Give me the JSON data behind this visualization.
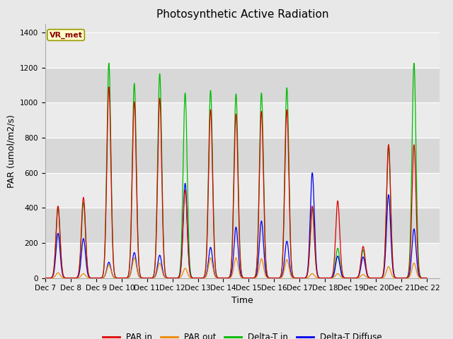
{
  "title": "Photosynthetic Active Radiation",
  "ylabel": "PAR (umol/m2/s)",
  "xlabel": "Time",
  "station_label": "VR_met",
  "ylim": [
    0,
    1450
  ],
  "yticks": [
    0,
    200,
    400,
    600,
    800,
    1000,
    1200,
    1400
  ],
  "xtick_labels": [
    "Dec 7",
    "Dec 8",
    "Dec 9",
    "Dec 10",
    "Dec 11",
    "Dec 12",
    "Dec 13",
    "Dec 14",
    "Dec 15",
    "Dec 16",
    "Dec 17",
    "Dec 18",
    "Dec 19",
    "Dec 20",
    "Dec 21",
    "Dec 22"
  ],
  "legend_entries": [
    "PAR in",
    "PAR out",
    "Delta-T in",
    "Delta-T Diffuse"
  ],
  "legend_colors": [
    "#dd0000",
    "#ee8800",
    "#00bb00",
    "#0000ee"
  ],
  "line_colors": {
    "PAR_in": "#dd0000",
    "PAR_out": "#ee8800",
    "Delta_T_in": "#00bb00",
    "Delta_T_Diffuse": "#0000ee"
  },
  "band_colors": [
    "#e8e8e8",
    "#d8d8d8"
  ],
  "plot_bg_color": "#e8e8e8",
  "grid_color": "#ffffff",
  "day_peaks": {
    "Dec7": {
      "PAR_in": 410,
      "PAR_out": 30,
      "Delta_T_in": 400,
      "Delta_T_Diffuse": 255
    },
    "Dec8": {
      "PAR_in": 460,
      "PAR_out": 25,
      "Delta_T_in": 430,
      "Delta_T_Diffuse": 225
    },
    "Dec9": {
      "PAR_in": 1090,
      "PAR_out": 75,
      "Delta_T_in": 1225,
      "Delta_T_Diffuse": 90
    },
    "Dec10": {
      "PAR_in": 1005,
      "PAR_out": 115,
      "Delta_T_in": 1110,
      "Delta_T_Diffuse": 145
    },
    "Dec11": {
      "PAR_in": 1025,
      "PAR_out": 85,
      "Delta_T_in": 1165,
      "Delta_T_Diffuse": 130
    },
    "Dec12": {
      "PAR_in": 500,
      "PAR_out": 55,
      "Delta_T_in": 1055,
      "Delta_T_Diffuse": 540
    },
    "Dec13": {
      "PAR_in": 960,
      "PAR_out": 115,
      "Delta_T_in": 1070,
      "Delta_T_Diffuse": 175
    },
    "Dec14": {
      "PAR_in": 935,
      "PAR_out": 115,
      "Delta_T_in": 1050,
      "Delta_T_Diffuse": 290
    },
    "Dec15": {
      "PAR_in": 950,
      "PAR_out": 110,
      "Delta_T_in": 1055,
      "Delta_T_Diffuse": 325
    },
    "Dec16": {
      "PAR_in": 960,
      "PAR_out": 105,
      "Delta_T_in": 1085,
      "Delta_T_Diffuse": 210
    },
    "Dec17": {
      "PAR_in": 410,
      "PAR_out": 25,
      "Delta_T_in": 395,
      "Delta_T_Diffuse": 600
    },
    "Dec18": {
      "PAR_in": 440,
      "PAR_out": 25,
      "Delta_T_in": 170,
      "Delta_T_Diffuse": 125
    },
    "Dec19": {
      "PAR_in": 180,
      "PAR_out": 20,
      "Delta_T_in": 160,
      "Delta_T_Diffuse": 120
    },
    "Dec20": {
      "PAR_in": 760,
      "PAR_out": 65,
      "Delta_T_in": 760,
      "Delta_T_Diffuse": 475
    },
    "Dec21": {
      "PAR_in": 760,
      "PAR_out": 85,
      "Delta_T_in": 1225,
      "Delta_T_Diffuse": 280
    }
  },
  "title_fontsize": 11,
  "label_fontsize": 9,
  "tick_fontsize": 7.5
}
